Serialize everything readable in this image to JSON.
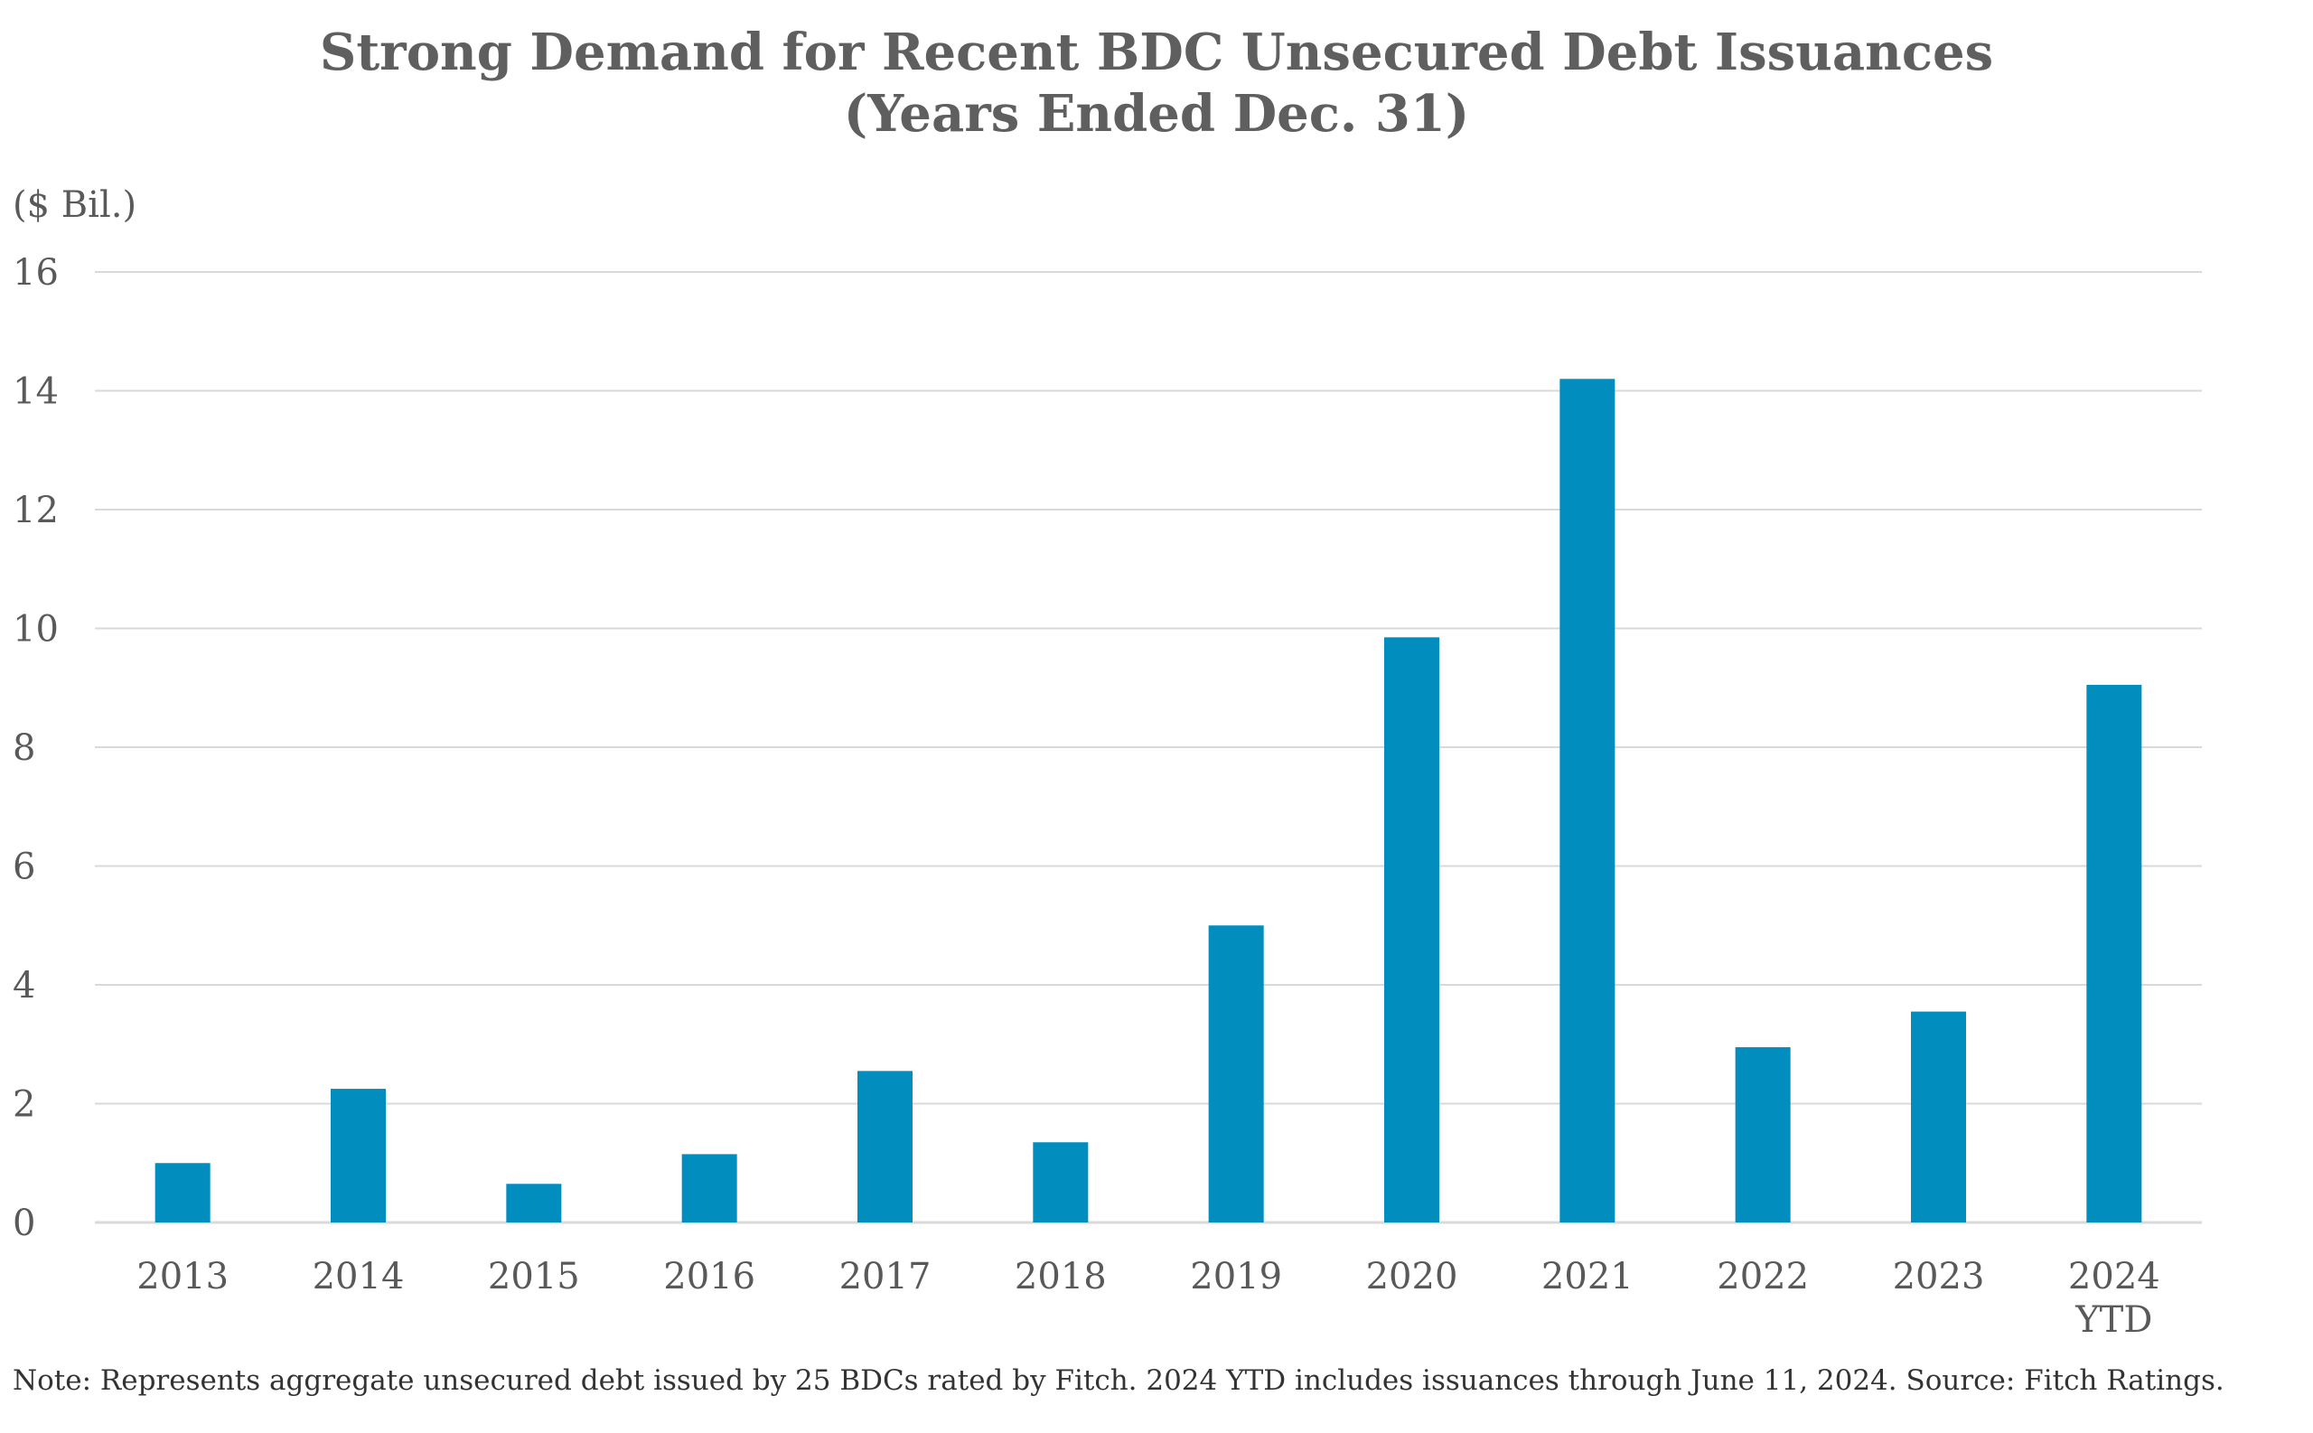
{
  "chart_data": {
    "type": "bar",
    "title": "Strong Demand for Recent BDC Unsecured Debt Issuances",
    "subtitle": "(Years Ended Dec. 31)",
    "ylabel": "($ Bil.)",
    "xlabel": "",
    "categories": [
      "2013",
      "2014",
      "2015",
      "2016",
      "2017",
      "2018",
      "2019",
      "2020",
      "2021",
      "2022",
      "2023",
      "2024 YTD"
    ],
    "category_lines": [
      [
        "2013"
      ],
      [
        "2014"
      ],
      [
        "2015"
      ],
      [
        "2016"
      ],
      [
        "2017"
      ],
      [
        "2018"
      ],
      [
        "2019"
      ],
      [
        "2020"
      ],
      [
        "2021"
      ],
      [
        "2022"
      ],
      [
        "2023"
      ],
      [
        "2024",
        "YTD"
      ]
    ],
    "values": [
      1.0,
      2.25,
      0.65,
      1.15,
      2.55,
      1.35,
      5.0,
      9.85,
      14.2,
      2.95,
      3.55,
      9.05
    ],
    "ylim": [
      0,
      16
    ],
    "yticks": [
      0,
      2,
      4,
      6,
      8,
      10,
      12,
      14,
      16
    ],
    "grid": true,
    "legend": "none",
    "bar_color": "#028dbf",
    "grid_color": "#d9d9d9",
    "note": "Note: Represents aggregate unsecured debt issued by 25 BDCs rated by Fitch. 2024 YTD includes issuances through June 11, 2024. Source: Fitch Ratings."
  }
}
